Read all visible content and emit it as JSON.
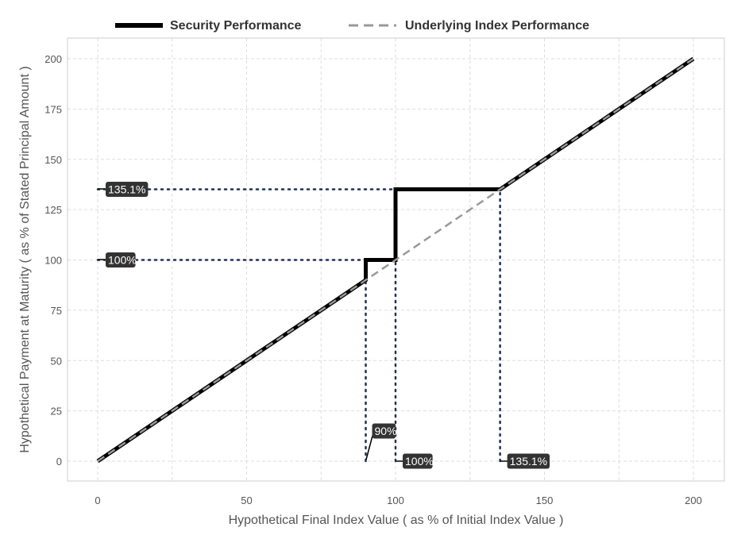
{
  "chart_data": {
    "type": "line",
    "xlabel": "Hypothetical Final Index Value ( as % of Initial Index Value )",
    "ylabel": "Hypothetical Payment at Maturity ( as % of Stated Principal Amount )",
    "xlim": [
      -10,
      210
    ],
    "ylim": [
      -10,
      210
    ],
    "x_ticks": [
      0,
      50,
      100,
      150,
      200
    ],
    "y_ticks": [
      0,
      25,
      50,
      75,
      100,
      125,
      150,
      175,
      200
    ],
    "grid": true,
    "legend_position": "top",
    "series": [
      {
        "name": "Security Performance",
        "style": "solid",
        "color": "#000000",
        "x": [
          0,
          90,
          90,
          100,
          100,
          135.1,
          200
        ],
        "y": [
          0,
          90,
          100,
          100,
          135.1,
          135.1,
          200
        ]
      },
      {
        "name": "Underlying Index Performance",
        "style": "dashed",
        "color": "#999999",
        "x": [
          0,
          200
        ],
        "y": [
          0,
          200
        ]
      }
    ],
    "reference_lines": [
      {
        "x": [
          0,
          100
        ],
        "y": [
          100,
          100
        ]
      },
      {
        "x": [
          0,
          135.1
        ],
        "y": [
          135.1,
          135.1
        ]
      },
      {
        "x": [
          90,
          90
        ],
        "y": [
          0,
          90
        ]
      },
      {
        "x": [
          100,
          100
        ],
        "y": [
          0,
          100
        ]
      },
      {
        "x": [
          135.1,
          135.1
        ],
        "y": [
          0,
          135.1
        ]
      }
    ],
    "annotations": [
      {
        "text": "135.1%",
        "x": 0,
        "y": 135.1
      },
      {
        "text": "100%",
        "x": 0,
        "y": 100
      },
      {
        "text": "90%",
        "x": 90,
        "y": 0
      },
      {
        "text": "100%",
        "x": 100,
        "y": 0
      },
      {
        "text": "135.1%",
        "x": 135.1,
        "y": 0
      }
    ],
    "colors": {
      "reference": "#1f2f5a",
      "label_bg": "#333333",
      "grid": "#dddddd",
      "frame": "#cccccc"
    }
  }
}
